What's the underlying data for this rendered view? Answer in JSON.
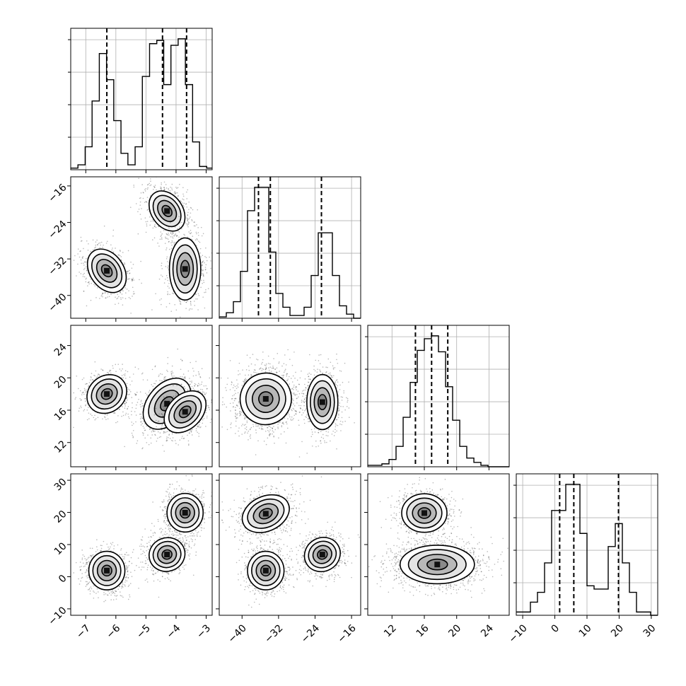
{
  "chart_data": {
    "type": "corner",
    "grid": true,
    "colors": {
      "line": "#000000",
      "grid": "#b0b0b0",
      "points": "#000000"
    },
    "parameters": [
      {
        "id": "p0",
        "range": [
          -7.5,
          -2.8
        ],
        "ticks": [
          -7,
          -6,
          -5,
          -4,
          -3
        ],
        "tick_labels": [
          "−7",
          "−6",
          "−5",
          "−4",
          "−3"
        ]
      },
      {
        "id": "p1",
        "range": [
          -45,
          -14
        ],
        "ticks": [
          -40,
          -32,
          -24,
          -16
        ],
        "tick_labels": [
          "−40",
          "−32",
          "−24",
          "−16"
        ]
      },
      {
        "id": "p2",
        "range": [
          9,
          26.5
        ],
        "ticks": [
          12,
          16,
          20,
          24
        ],
        "tick_labels": [
          "12",
          "16",
          "20",
          "24"
        ]
      },
      {
        "id": "p3",
        "range": [
          -12,
          32
        ],
        "ticks": [
          -10,
          0,
          10,
          20,
          30
        ],
        "tick_labels": [
          "−10",
          "0",
          "10",
          "20",
          "30"
        ]
      }
    ],
    "histograms": [
      {
        "param": "p0",
        "bin_edges": [
          -7.5,
          -7.26,
          -7.02,
          -6.79,
          -6.55,
          -6.31,
          -6.07,
          -5.83,
          -5.6,
          -5.36,
          -5.12,
          -4.88,
          -4.64,
          -4.41,
          -4.17,
          -3.93,
          -3.69,
          -3.45,
          -3.22,
          -2.98,
          -2.8
        ],
        "counts": [
          1,
          3,
          14,
          42,
          71,
          55,
          30,
          10,
          3,
          14,
          57,
          77,
          79,
          52,
          76,
          80,
          52,
          17,
          2,
          1
        ],
        "quantiles": [
          -6.3,
          -4.45,
          -3.65
        ]
      },
      {
        "param": "p1",
        "bin_edges": [
          -45,
          -43.45,
          -41.9,
          -40.35,
          -38.8,
          -37.25,
          -35.7,
          -34.15,
          -32.6,
          -31.05,
          -29.5,
          -27.95,
          -26.4,
          -24.85,
          -23.3,
          -21.75,
          -20.2,
          -18.65,
          -17.1,
          -15.55,
          -14
        ],
        "counts": [
          1,
          4,
          12,
          34,
          78,
          95,
          95,
          48,
          18,
          8,
          2,
          2,
          8,
          31,
          62,
          62,
          31,
          9,
          3,
          0
        ],
        "quantiles": [
          -36.4,
          -33.8,
          -22.6
        ]
      },
      {
        "param": "p2",
        "bin_edges": [
          9,
          9.88,
          10.75,
          11.63,
          12.5,
          13.38,
          14.25,
          15.13,
          16,
          16.88,
          17.75,
          18.63,
          19.5,
          20.38,
          21.25,
          22.13,
          23,
          23.88,
          24.75,
          25.63,
          26.5
        ],
        "counts": [
          1,
          1,
          2,
          5,
          14,
          34,
          58,
          80,
          88,
          90,
          79,
          55,
          32,
          14,
          6,
          3,
          1,
          0,
          0,
          0
        ],
        "quantiles": [
          14.9,
          16.9,
          18.9
        ]
      },
      {
        "param": "p3",
        "bin_edges": [
          -12,
          -9.8,
          -7.6,
          -5.4,
          -3.2,
          -1,
          1.2,
          3.4,
          5.6,
          7.8,
          10,
          12.2,
          14.4,
          16.6,
          18.8,
          21,
          23.2,
          25.4,
          27.6,
          29.8,
          32
        ],
        "counts": [
          1,
          1,
          4,
          7,
          16,
          32,
          32,
          40,
          40,
          25,
          9,
          8,
          8,
          21,
          28,
          16,
          7,
          1,
          1,
          0
        ],
        "quantiles": [
          1.5,
          5.9,
          19.8
        ]
      }
    ],
    "pair_panels": [
      {
        "x": "p0",
        "y": "p1",
        "clusters": [
          {
            "center": [
              -6.3,
              -34.6
            ],
            "sd": [
              0.28,
              2.6
            ],
            "rot": -35,
            "n": 700
          },
          {
            "center": [
              -4.3,
              -21.5
            ],
            "sd": [
              0.26,
              2.4
            ],
            "rot": -35,
            "n": 700
          },
          {
            "center": [
              -3.7,
              -34.2
            ],
            "sd": [
              0.26,
              3.4
            ],
            "rot": 0,
            "n": 700
          }
        ]
      },
      {
        "x": "p0",
        "y": "p2",
        "clusters": [
          {
            "center": [
              -6.3,
              18.0
            ],
            "sd": [
              0.3,
              1.3
            ],
            "rot": 50,
            "n": 650
          },
          {
            "center": [
              -4.3,
              16.8
            ],
            "sd": [
              0.32,
              1.8
            ],
            "rot": 40,
            "n": 700
          },
          {
            "center": [
              -3.7,
              15.8
            ],
            "sd": [
              0.28,
              1.5
            ],
            "rot": 45,
            "n": 650
          }
        ]
      },
      {
        "x": "p1",
        "y": "p2",
        "clusters": [
          {
            "center": [
              -34.8,
              17.4
            ],
            "sd": [
              2.8,
              1.6
            ],
            "rot": 30,
            "n": 1300
          },
          {
            "center": [
              -22.4,
              17.0
            ],
            "sd": [
              1.7,
              1.7
            ],
            "rot": 0,
            "n": 700
          }
        ]
      },
      {
        "x": "p0",
        "y": "p3",
        "clusters": [
          {
            "center": [
              -6.3,
              1.9
            ],
            "sd": [
              0.3,
              3.0
            ],
            "rot": 0,
            "n": 700
          },
          {
            "center": [
              -4.3,
              6.9
            ],
            "sd": [
              0.3,
              2.6
            ],
            "rot": -20,
            "n": 700
          },
          {
            "center": [
              -3.7,
              19.9
            ],
            "sd": [
              0.3,
              3.0
            ],
            "rot": 0,
            "n": 700
          }
        ]
      },
      {
        "x": "p1",
        "y": "p3",
        "clusters": [
          {
            "center": [
              -34.8,
              19.6
            ],
            "sd": [
              2.7,
              2.7
            ],
            "rot": -25,
            "n": 700
          },
          {
            "center": [
              -34.8,
              1.9
            ],
            "sd": [
              2.0,
              3.0
            ],
            "rot": 0,
            "n": 700
          },
          {
            "center": [
              -22.4,
              6.9
            ],
            "sd": [
              2.0,
              2.6
            ],
            "rot": -30,
            "n": 700
          }
        ]
      },
      {
        "x": "p2",
        "y": "p3",
        "clusters": [
          {
            "center": [
              16.0,
              19.8
            ],
            "sd": [
              1.4,
              3.0
            ],
            "rot": 0,
            "n": 700
          },
          {
            "center": [
              17.6,
              3.8
            ],
            "sd": [
              2.3,
              3.0
            ],
            "rot": 0,
            "n": 1400
          }
        ]
      }
    ]
  }
}
